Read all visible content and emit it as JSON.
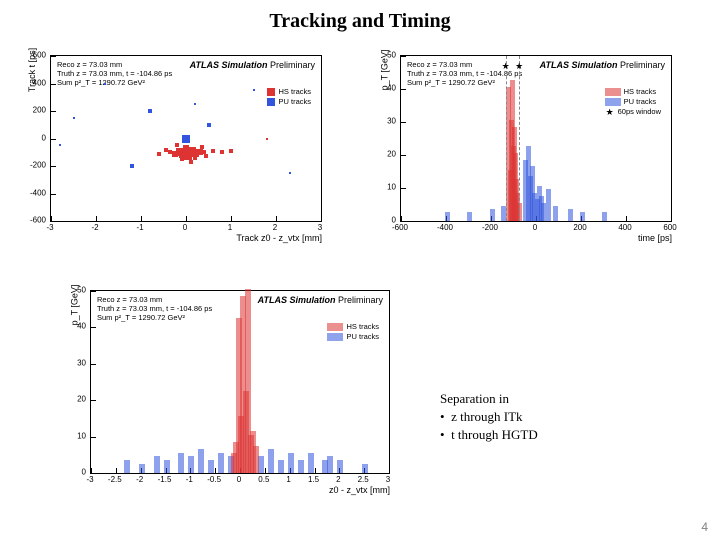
{
  "title": "Tracking and Timing",
  "page_number": "4",
  "separation": {
    "heading": "Separation in",
    "bullet1": "z through ITk",
    "bullet2": "t through HGTD"
  },
  "colors": {
    "hs": "#dd3333",
    "pu": "#3355dd",
    "black": "#000000",
    "grey": "#888888"
  },
  "info_block": {
    "line1": "Reco z = 73.03 mm",
    "line2": "Truth z = 73.03 mm, t = -104.86 ps",
    "line3": "Sum p²_T = 1290.72 GeV²"
  },
  "sim_label": {
    "bold": "ATLAS Simulation",
    "rest": " Preliminary"
  },
  "legend_common": {
    "hs": "HS tracks",
    "pu": "PU tracks",
    "window": "60ps window"
  },
  "chart_scatter": {
    "type": "scatter",
    "ylabel": "Track t [ps]",
    "xlabel": "Track z0 - z_vtx [mm]",
    "xlim": [
      -3,
      3
    ],
    "xtick_step": 1,
    "ylim": [
      -600,
      600
    ],
    "ytick_step": 200,
    "hs_points": [
      [
        -0.1,
        -100,
        4
      ],
      [
        0.0,
        -110,
        6
      ],
      [
        0.1,
        -95,
        5
      ],
      [
        0.2,
        -105,
        4
      ],
      [
        -0.15,
        -90,
        3
      ],
      [
        0.05,
        -120,
        4
      ],
      [
        0.3,
        -100,
        3
      ],
      [
        -0.25,
        -115,
        3
      ],
      [
        0.15,
        -85,
        3
      ],
      [
        -0.05,
        -105,
        5
      ],
      [
        0.4,
        -95,
        2
      ],
      [
        -0.35,
        -100,
        2
      ],
      [
        0.6,
        -90,
        2
      ],
      [
        0.0,
        -70,
        3
      ],
      [
        0.2,
        -140,
        2
      ],
      [
        -0.45,
        -80,
        2
      ],
      [
        0.45,
        -130,
        2
      ],
      [
        -0.1,
        -150,
        2
      ],
      [
        0.35,
        -60,
        2
      ],
      [
        0.8,
        -100,
        2
      ],
      [
        -0.6,
        -110,
        2
      ],
      [
        1.0,
        -90,
        2
      ],
      [
        -0.2,
        -50,
        2
      ],
      [
        0.1,
        -170,
        2
      ],
      [
        1.8,
        0,
        1
      ]
    ],
    "pu_points": [
      [
        0.0,
        0,
        4
      ],
      [
        -1.2,
        -200,
        2
      ],
      [
        -2.5,
        150,
        1
      ],
      [
        1.5,
        350,
        1
      ],
      [
        -0.8,
        200,
        2
      ],
      [
        0.5,
        100,
        2
      ],
      [
        -2.8,
        -50,
        1
      ],
      [
        2.3,
        -250,
        1
      ],
      [
        0.2,
        250,
        1
      ],
      [
        -1.8,
        400,
        1
      ]
    ]
  },
  "chart_time": {
    "type": "histogram",
    "ylabel": "p_T [GeV]",
    "xlabel": "time [ps]",
    "xlim": [
      -600,
      600
    ],
    "xtick_step": 200,
    "ylim": [
      0,
      50
    ],
    "ytick_step": 10,
    "dashed": [
      -135,
      -75
    ],
    "stars": [
      [
        -135,
        47
      ],
      [
        -75,
        47
      ]
    ],
    "hs_bars": [
      [
        -125,
        40
      ],
      [
        -120,
        15
      ],
      [
        -115,
        30
      ],
      [
        -110,
        42
      ],
      [
        -105,
        22
      ],
      [
        -100,
        28
      ],
      [
        -95,
        20
      ],
      [
        -90,
        12
      ],
      [
        -85,
        8
      ],
      [
        -80,
        5
      ]
    ],
    "pu_bars": [
      [
        -200,
        3
      ],
      [
        -150,
        4
      ],
      [
        -50,
        18
      ],
      [
        -40,
        22
      ],
      [
        -30,
        13
      ],
      [
        -20,
        16
      ],
      [
        -10,
        8
      ],
      [
        0,
        6
      ],
      [
        10,
        10
      ],
      [
        20,
        7
      ],
      [
        30,
        5
      ],
      [
        50,
        9
      ],
      [
        80,
        4
      ],
      [
        150,
        3
      ],
      [
        200,
        2
      ],
      [
        -300,
        2
      ],
      [
        -400,
        2
      ],
      [
        300,
        2
      ]
    ]
  },
  "chart_z": {
    "type": "histogram",
    "ylabel": "p_T [GeV]",
    "xlabel": "z0 - z_vtx [mm]",
    "xlim": [
      -3,
      3
    ],
    "xtick_step": 0.5,
    "ylim": [
      0,
      50
    ],
    "ytick_step": 10,
    "hs_bars": [
      [
        -0.05,
        42
      ],
      [
        0.0,
        15
      ],
      [
        0.05,
        48
      ],
      [
        0.1,
        22
      ],
      [
        0.15,
        50
      ],
      [
        0.2,
        10
      ],
      [
        -0.1,
        8
      ],
      [
        -0.15,
        5
      ],
      [
        0.3,
        7
      ],
      [
        0.25,
        11
      ]
    ],
    "pu_bars": [
      [
        -2.3,
        3
      ],
      [
        -2.0,
        2
      ],
      [
        -1.7,
        4
      ],
      [
        -1.5,
        3
      ],
      [
        -1.2,
        5
      ],
      [
        -1.0,
        4
      ],
      [
        -0.8,
        6
      ],
      [
        -0.6,
        3
      ],
      [
        -0.4,
        5
      ],
      [
        -0.2,
        4
      ],
      [
        0.4,
        4
      ],
      [
        0.6,
        6
      ],
      [
        0.8,
        3
      ],
      [
        1.0,
        5
      ],
      [
        1.2,
        3
      ],
      [
        1.4,
        5
      ],
      [
        1.7,
        3
      ],
      [
        1.8,
        4
      ],
      [
        2.0,
        3
      ],
      [
        2.5,
        2
      ]
    ]
  }
}
